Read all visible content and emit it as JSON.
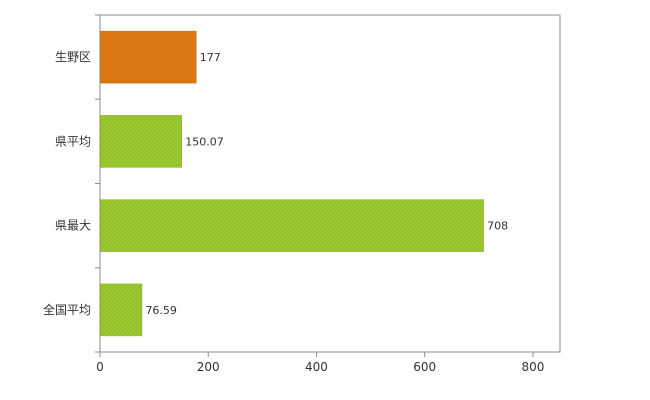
{
  "chart_data": {
    "type": "bar",
    "orientation": "horizontal",
    "title": "",
    "categories": [
      "生野区",
      "県平均",
      "県最大",
      "全国平均"
    ],
    "values": [
      177,
      150.07,
      708,
      76.59
    ],
    "value_labels": [
      "177",
      "150.07",
      "708",
      "76.59"
    ],
    "bar_colors": [
      "#df7a16",
      "#9cc832",
      "#9cc832",
      "#9cc832"
    ],
    "bar_dot_colors": [
      "#c96a0c",
      "#89b524",
      "#89b524",
      "#89b524"
    ],
    "x_ticks": [
      0,
      200,
      400,
      600,
      800
    ],
    "x_tick_labels": [
      "0",
      "200",
      "400",
      "600",
      "800"
    ],
    "xlim": [
      0,
      850
    ],
    "grid": false,
    "legend": "none",
    "axis_color": "#8c8c8c",
    "tick_text_color": "#333333",
    "label_text_color": "#333333",
    "plot_background": "#ffffff"
  }
}
